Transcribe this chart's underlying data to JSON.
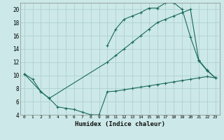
{
  "xlabel": "Humidex (Indice chaleur)",
  "bg_color": "#cce8e8",
  "grid_color": "#aacccc",
  "line_color": "#1a6b5a",
  "xlim": [
    -0.5,
    23.5
  ],
  "ylim": [
    4,
    21
  ],
  "xticks": [
    0,
    1,
    2,
    3,
    4,
    5,
    6,
    7,
    8,
    9,
    10,
    11,
    12,
    13,
    14,
    15,
    16,
    17,
    18,
    19,
    20,
    21,
    22,
    23
  ],
  "yticks": [
    4,
    6,
    8,
    10,
    12,
    14,
    16,
    18,
    20
  ],
  "line1_x": [
    0,
    1,
    2,
    3,
    4,
    5,
    6,
    7,
    8,
    9,
    10,
    11,
    12,
    13,
    14,
    15,
    16,
    17,
    18,
    19,
    20,
    21,
    22,
    23
  ],
  "line1_y": [
    10.2,
    9.4,
    7.5,
    6.5,
    5.2,
    5.0,
    4.8,
    4.4,
    4.0,
    4.0,
    7.5,
    7.6,
    7.8,
    8.0,
    8.2,
    8.4,
    8.6,
    8.8,
    9.0,
    9.2,
    9.4,
    9.6,
    9.8,
    9.6
  ],
  "line2_x": [
    0,
    2,
    3,
    10,
    11,
    12,
    13,
    14,
    15,
    16,
    17,
    18,
    19,
    20,
    21,
    22,
    23
  ],
  "line2_y": [
    10.2,
    7.5,
    6.5,
    12.0,
    13.0,
    14.0,
    15.0,
    16.0,
    17.0,
    18.0,
    18.5,
    19.0,
    19.5,
    20.0,
    12.3,
    10.8,
    9.6
  ],
  "line3_x": [
    10,
    11,
    12,
    13,
    14,
    15,
    16,
    17,
    18,
    19,
    20,
    21,
    22,
    23
  ],
  "line3_y": [
    14.5,
    17.0,
    18.5,
    19.0,
    19.5,
    20.2,
    20.2,
    21.0,
    21.0,
    20.0,
    15.8,
    12.2,
    10.7,
    9.6
  ]
}
